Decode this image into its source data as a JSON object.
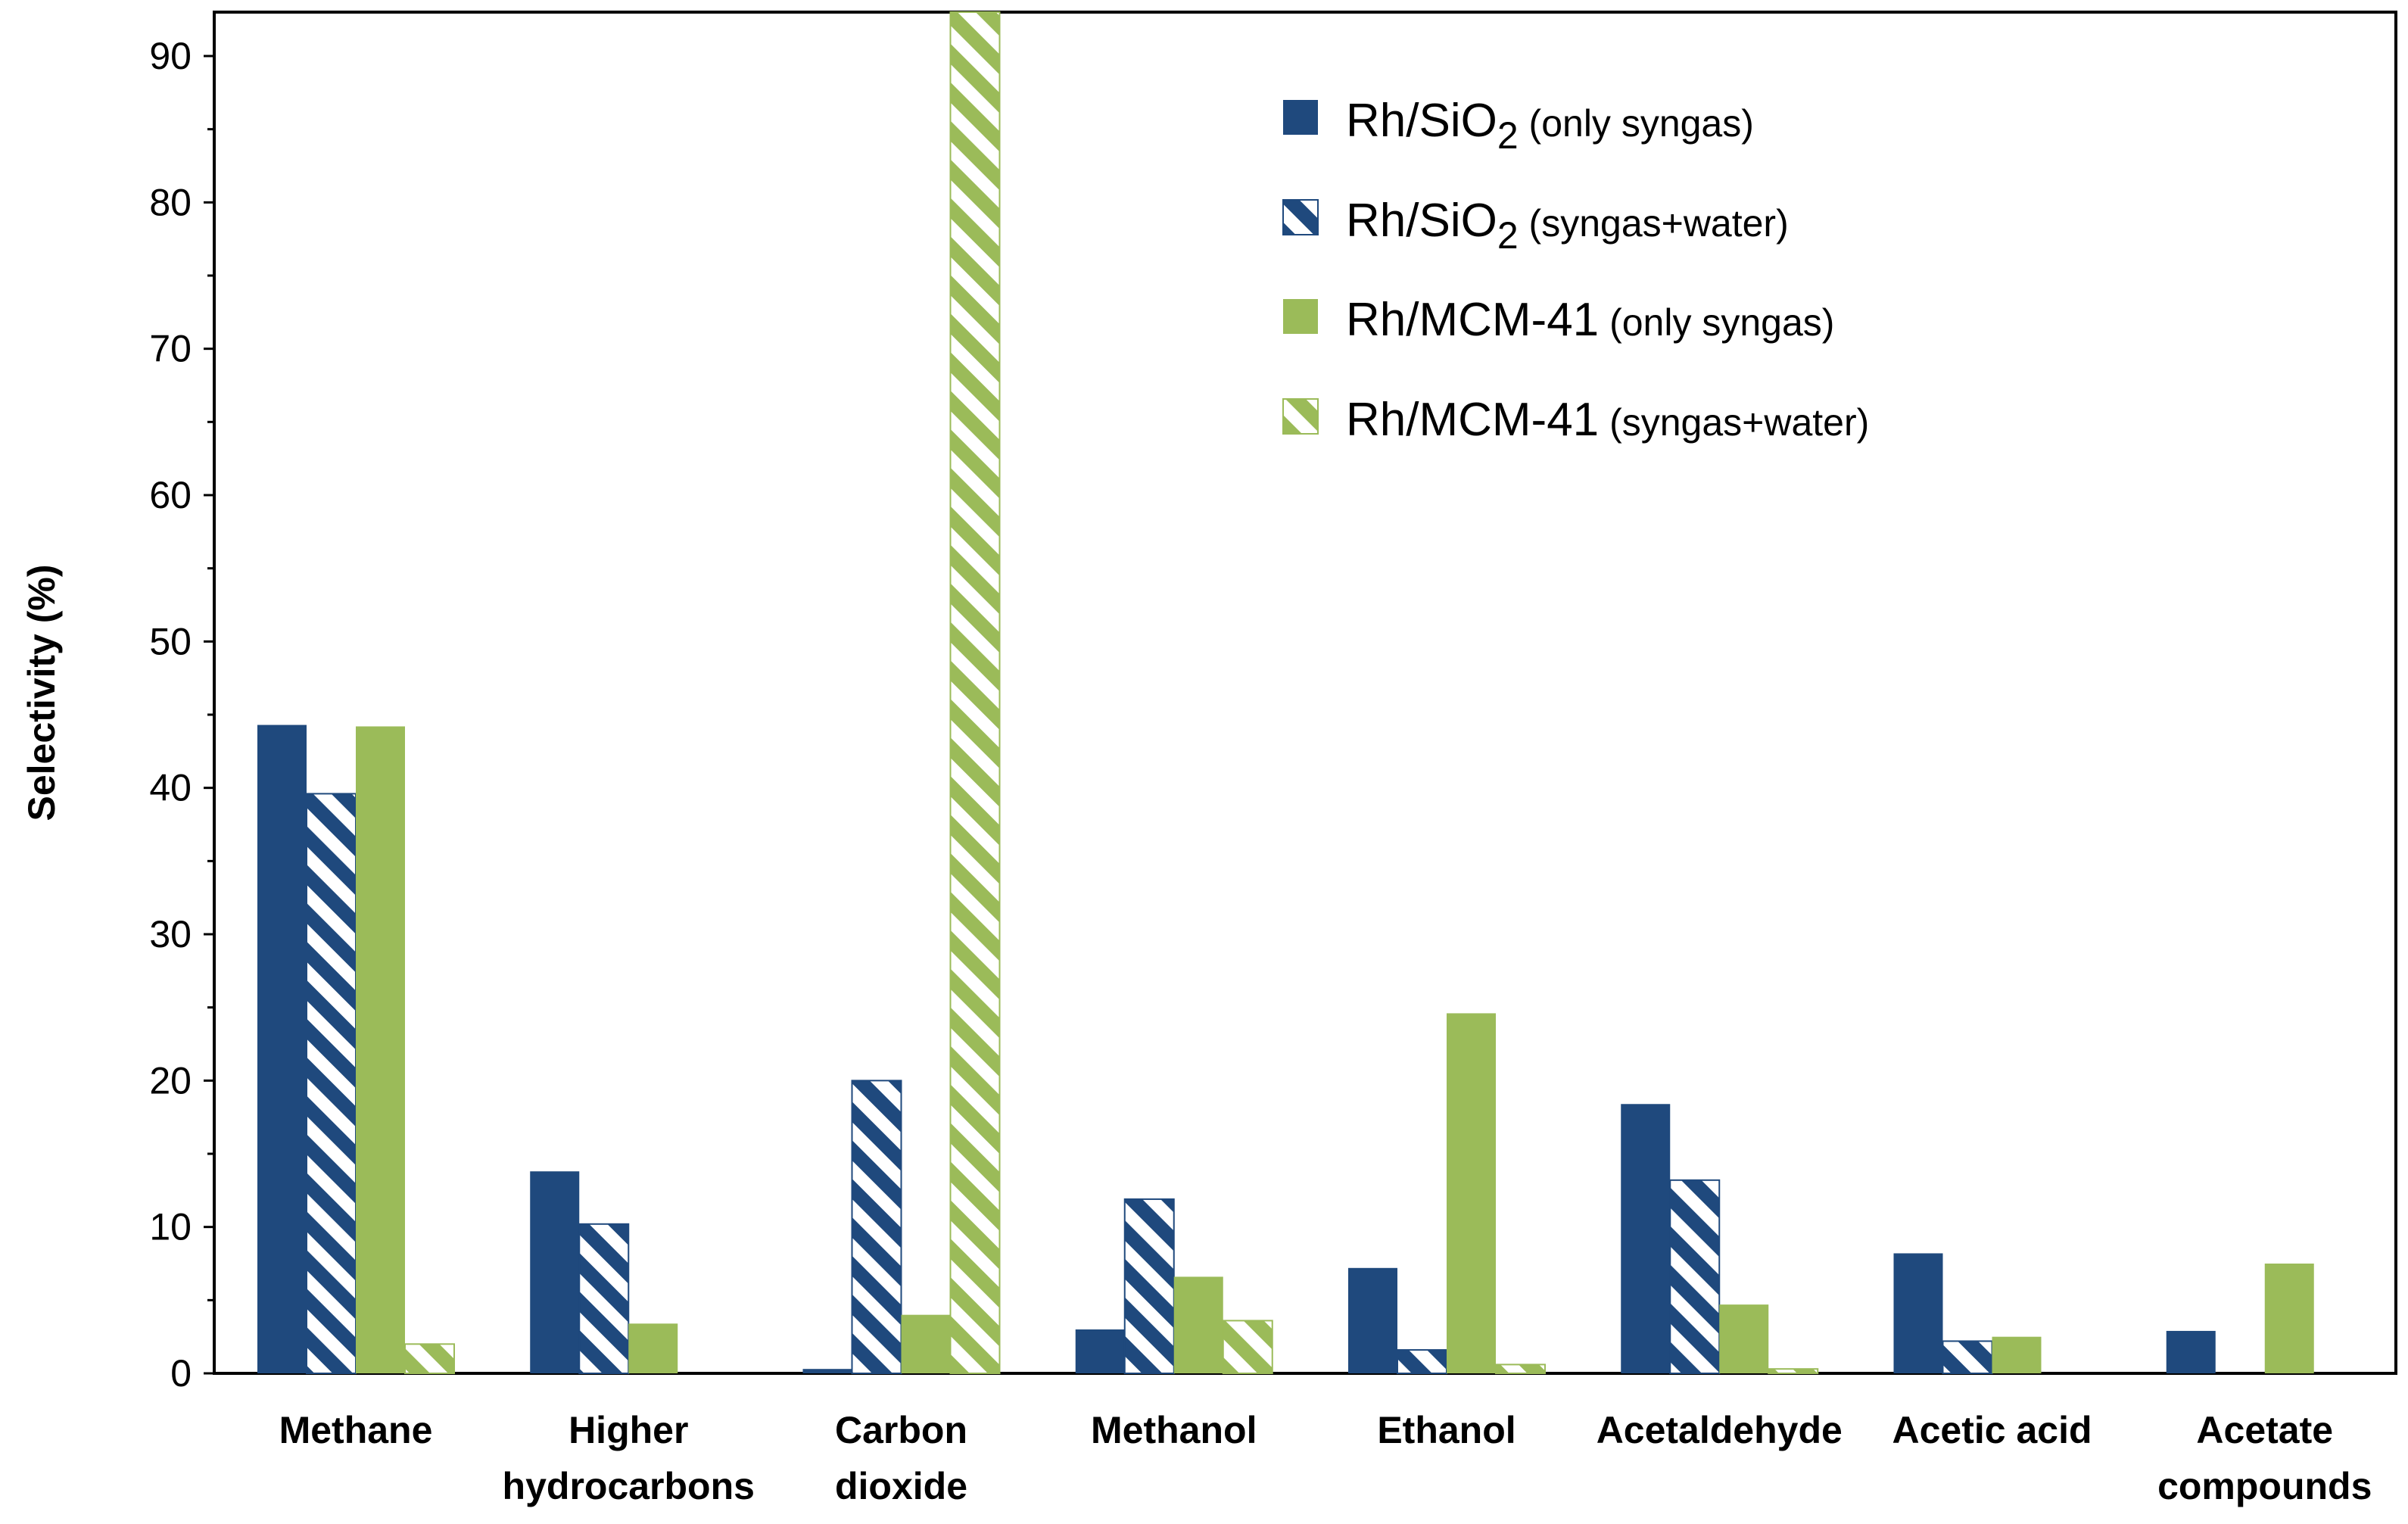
{
  "chart_data": {
    "type": "bar",
    "ylabel": "Selectivity (%)",
    "xlabel": "",
    "ylim": [
      0,
      93
    ],
    "y_ticks": [
      "0",
      "10",
      "20",
      "30",
      "40",
      "50",
      "60",
      "70",
      "80",
      "90"
    ],
    "categories": [
      [
        "Methane"
      ],
      [
        "Higher",
        "hydrocarbons"
      ],
      [
        "Carbon",
        "dioxide"
      ],
      [
        "Methanol"
      ],
      [
        "Ethanol"
      ],
      [
        "Acetaldehyde"
      ],
      [
        "Acetic acid"
      ],
      [
        "Acetate",
        "compounds"
      ]
    ],
    "series": [
      {
        "name": "Rh/SiO2 (only syngas)",
        "label_main": "Rh/SiO",
        "label_sub": "2",
        "label_note": "(only syngas)",
        "color": "#1f497d",
        "pattern": "solid",
        "values": [
          44.3,
          13.8,
          0.3,
          3.0,
          7.2,
          18.4,
          8.2,
          2.9
        ]
      },
      {
        "name": "Rh/SiO2 (syngas+water)",
        "label_main": "Rh/SiO",
        "label_sub": "2",
        "label_note": "(syngas+water)",
        "color": "#1f497d",
        "pattern": "hatched",
        "values": [
          39.6,
          10.2,
          20.0,
          11.9,
          1.6,
          13.2,
          2.2,
          0
        ]
      },
      {
        "name": "Rh/MCM-41 (only syngas)",
        "label_main": "Rh/MCM-41",
        "label_sub": "",
        "label_note": "(only syngas)",
        "color": "#9bbb59",
        "pattern": "solid",
        "values": [
          44.2,
          3.4,
          4.0,
          6.6,
          24.6,
          4.7,
          2.5,
          7.5
        ]
      },
      {
        "name": "Rh/MCM-41 (syngas+water)",
        "label_main": "Rh/MCM-41",
        "label_sub": "",
        "label_note": "(syngas+water)",
        "color": "#9bbb59",
        "pattern": "hatched",
        "values": [
          2.0,
          0,
          93,
          3.6,
          0.6,
          0.3,
          0,
          0
        ]
      }
    ],
    "legend": "top-right",
    "grid": false
  }
}
